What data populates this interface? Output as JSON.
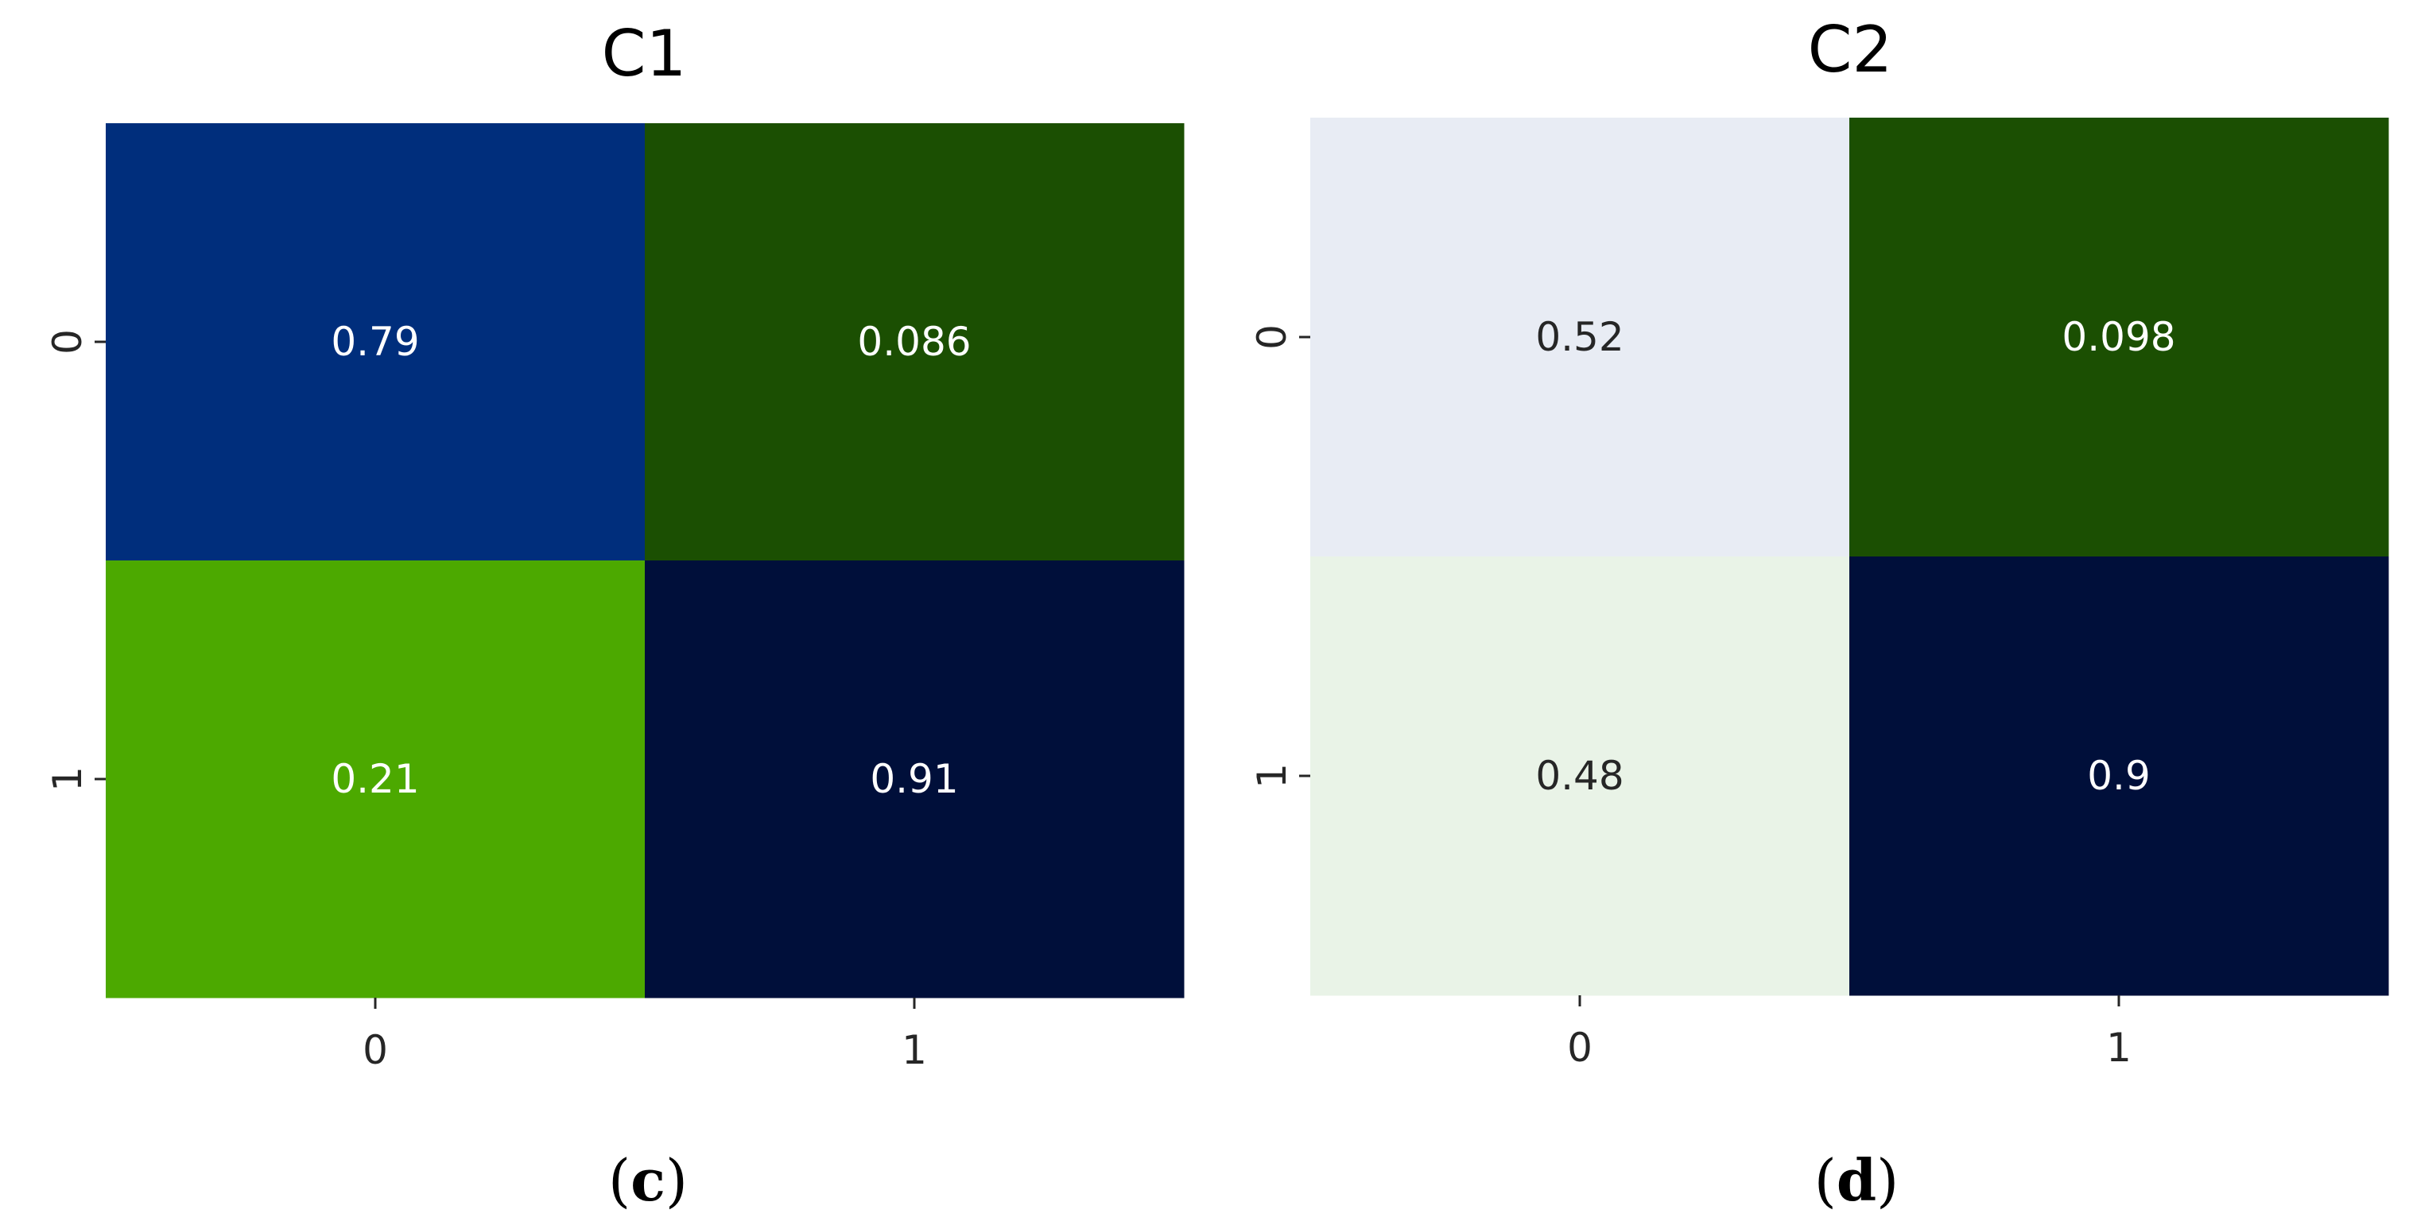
{
  "chart_data": [
    {
      "type": "heatmap",
      "title": "C1",
      "caption": "(c)",
      "caption_letter": "c",
      "x_ticks": [
        "0",
        "1"
      ],
      "y_ticks": [
        "0",
        "1"
      ],
      "values": [
        [
          0.79,
          0.086
        ],
        [
          0.21,
          0.91
        ]
      ],
      "labels": [
        [
          "0.79",
          "0.086"
        ],
        [
          "0.21",
          "0.91"
        ]
      ],
      "cell_colors": [
        [
          "#002e7c",
          "#1b4f02"
        ],
        [
          "#4ca900",
          "#000f3a"
        ]
      ],
      "label_colors": [
        [
          "#ffffff",
          "#ffffff"
        ],
        [
          "#ffffff",
          "#ffffff"
        ]
      ],
      "colorbar": false
    },
    {
      "type": "heatmap",
      "title": "C2",
      "caption": "(d)",
      "caption_letter": "d",
      "x_ticks": [
        "0",
        "1"
      ],
      "y_ticks": [
        "0",
        "1"
      ],
      "values": [
        [
          0.52,
          0.098
        ],
        [
          0.48,
          0.9
        ]
      ],
      "labels": [
        [
          "0.52",
          "0.098"
        ],
        [
          "0.48",
          "0.9"
        ]
      ],
      "cell_colors": [
        [
          "#e8ecf4",
          "#1b4f02"
        ],
        [
          "#e9f3e7",
          "#000f3a"
        ]
      ],
      "label_colors": [
        [
          "#262626",
          "#ffffff"
        ],
        [
          "#262626",
          "#ffffff"
        ]
      ],
      "colorbar": false
    }
  ]
}
